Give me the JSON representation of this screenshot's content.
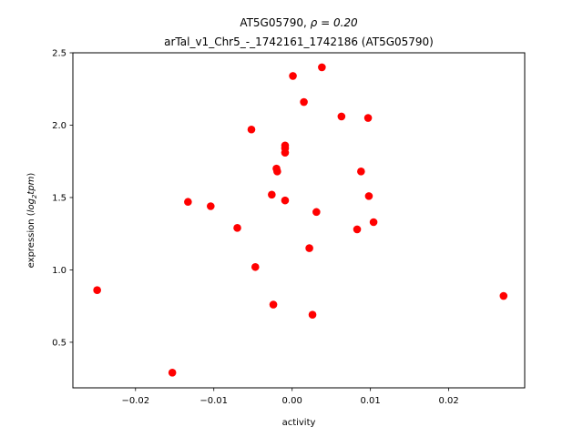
{
  "chart_data": {
    "type": "scatter",
    "title_line1_prefix": "AT5G05790, ",
    "title_line1_math": "ρ = 0.20",
    "title_line2": "arTal_v1_Chr5_-_1742161_1742186 (AT5G05790)",
    "xlabel": "activity",
    "ylabel_prefix": "expression (",
    "ylabel_math_a": "log",
    "ylabel_math_sub": "2",
    "ylabel_math_b": "tpm",
    "ylabel_suffix": ")",
    "xlim": [
      -0.028,
      0.0297
    ],
    "ylim": [
      0.185,
      2.5
    ],
    "x_ticks": [
      -0.02,
      -0.01,
      0.0,
      0.01,
      0.02
    ],
    "x_tick_labels": [
      "−0.02",
      "−0.01",
      "0.00",
      "0.01",
      "0.02"
    ],
    "y_ticks": [
      0.5,
      1.0,
      1.5,
      2.0,
      2.5
    ],
    "y_tick_labels": [
      "0.5",
      "1.0",
      "1.5",
      "2.0",
      "2.5"
    ],
    "grid": false,
    "marker_color": "#ff0000",
    "points": [
      {
        "x": -0.0249,
        "y": 0.86
      },
      {
        "x": -0.0153,
        "y": 0.29
      },
      {
        "x": -0.0133,
        "y": 1.47
      },
      {
        "x": -0.0104,
        "y": 1.44
      },
      {
        "x": -0.007,
        "y": 1.29
      },
      {
        "x": -0.0052,
        "y": 1.97
      },
      {
        "x": -0.0047,
        "y": 1.02
      },
      {
        "x": -0.0026,
        "y": 1.52
      },
      {
        "x": -0.0024,
        "y": 0.76
      },
      {
        "x": -0.002,
        "y": 1.7
      },
      {
        "x": -0.0019,
        "y": 1.68
      },
      {
        "x": -0.0009,
        "y": 1.86
      },
      {
        "x": -0.0009,
        "y": 1.84
      },
      {
        "x": -0.0009,
        "y": 1.81
      },
      {
        "x": -0.0009,
        "y": 1.48
      },
      {
        "x": 0.0001,
        "y": 2.34
      },
      {
        "x": 0.0015,
        "y": 2.16
      },
      {
        "x": 0.0022,
        "y": 1.15
      },
      {
        "x": 0.0026,
        "y": 0.69
      },
      {
        "x": 0.0031,
        "y": 1.4
      },
      {
        "x": 0.0038,
        "y": 2.4
      },
      {
        "x": 0.0063,
        "y": 2.06
      },
      {
        "x": 0.0083,
        "y": 1.28
      },
      {
        "x": 0.0088,
        "y": 1.68
      },
      {
        "x": 0.0097,
        "y": 2.05
      },
      {
        "x": 0.0098,
        "y": 1.51
      },
      {
        "x": 0.0104,
        "y": 1.33
      },
      {
        "x": 0.027,
        "y": 0.82
      }
    ]
  }
}
